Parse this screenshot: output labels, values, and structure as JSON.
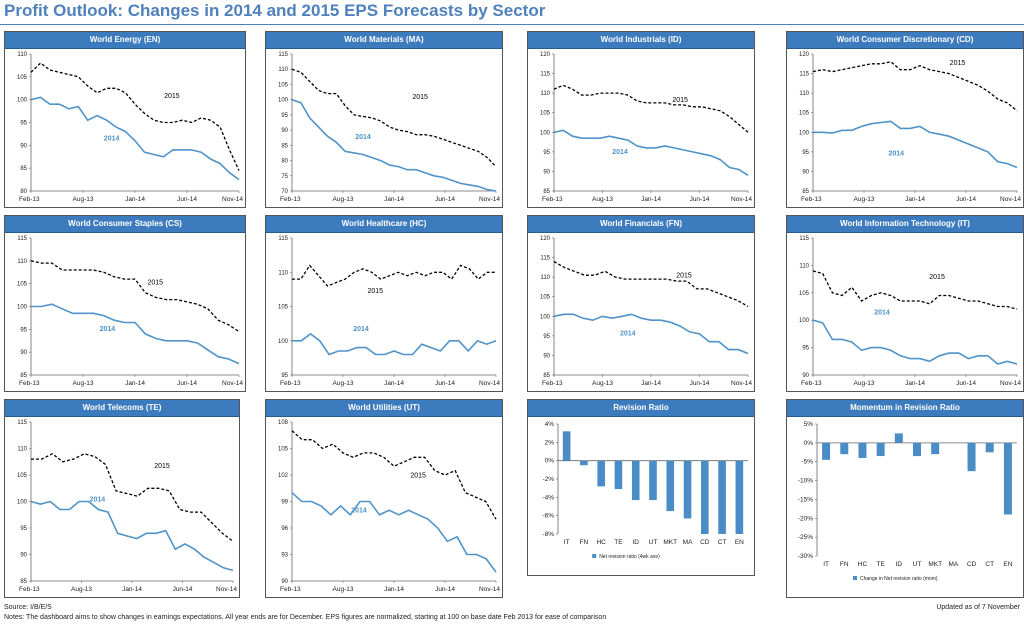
{
  "page": {
    "title": "Profit Outlook: Changes in 2014 and 2015 EPS Forecasts by Sector",
    "source": "Source: I/B/E/S",
    "notes": "Notes:  The dashboard aims to show changes in earnings expectations. All year ends are for December. EPS  figures are normalized, starting at 100 on base date Feb 2013 for ease of comparison",
    "updated": "Updated as of 7 November"
  },
  "colors": {
    "header": "#3d7bbf",
    "series_2014": "#4f93c8",
    "series_2015": "#000000",
    "bars": "#4a8cc6",
    "title": "#4f81bd"
  },
  "chart_data": [
    {
      "type": "line",
      "title": "World Energy (EN)",
      "xticks": [
        "Feb-13",
        "Aug-13",
        "Jan-14",
        "Jun-14",
        "Nov-14"
      ],
      "ylim": [
        80,
        110
      ],
      "yticks": [
        80,
        85,
        90,
        95,
        100,
        105,
        110
      ],
      "labels": {
        "y2015": "2015",
        "y2014": "2014"
      },
      "series": [
        {
          "name": "2015",
          "values": [
            106,
            108,
            106.5,
            106,
            105.5,
            105,
            103,
            101.5,
            102.5,
            102.5,
            101.5,
            99,
            97,
            95.5,
            95,
            95,
            95.5,
            95,
            96,
            95.5,
            94,
            89,
            84.5
          ]
        },
        {
          "name": "2014",
          "values": [
            100,
            100.5,
            99,
            99,
            98,
            98.5,
            95.5,
            96.5,
            95.5,
            94,
            93,
            91,
            88.5,
            88,
            87.5,
            89,
            89,
            89,
            88.5,
            87,
            86,
            84,
            82.5
          ]
        }
      ]
    },
    {
      "type": "line",
      "title": "World Materials (MA)",
      "xticks": [
        "Feb-13",
        "Aug-13",
        "Jan-14",
        "Jun-14",
        "Nov-14"
      ],
      "ylim": [
        70,
        115
      ],
      "yticks": [
        70,
        75,
        80,
        85,
        90,
        95,
        100,
        105,
        110,
        115
      ],
      "labels": {
        "y2015": "2015",
        "y2014": "2014"
      },
      "series": [
        {
          "name": "2015",
          "values": [
            110,
            109,
            106,
            103,
            102,
            102,
            98,
            95,
            94.5,
            94,
            93,
            91,
            90,
            89.5,
            88.5,
            88.5,
            88,
            87,
            86,
            85,
            84,
            83,
            81,
            78
          ]
        },
        {
          "name": "2014",
          "values": [
            100,
            99,
            94,
            91,
            88,
            86,
            83,
            82.5,
            82,
            81,
            80,
            78.5,
            78,
            77,
            77,
            76,
            75,
            74.5,
            73.5,
            72.5,
            72,
            71.5,
            70.5,
            70
          ]
        }
      ]
    },
    {
      "type": "line",
      "title": "World Industrials (ID)",
      "xticks": [
        "Feb-13",
        "Aug-13",
        "Jan-14",
        "Jun-14",
        "Nov-14"
      ],
      "ylim": [
        85,
        120
      ],
      "yticks": [
        85,
        90,
        95,
        100,
        105,
        110,
        115,
        120
      ],
      "labels": {
        "y2015": "2015",
        "y2014": "2014"
      },
      "series": [
        {
          "name": "2015",
          "values": [
            111,
            112,
            111,
            109.5,
            109.5,
            110,
            110,
            110,
            109.5,
            108,
            107.5,
            107.5,
            107.5,
            107,
            107,
            106.5,
            106.5,
            106,
            105.5,
            104,
            102,
            100
          ]
        },
        {
          "name": "2014",
          "values": [
            100,
            100.5,
            99,
            98.5,
            98.5,
            98.5,
            99,
            98.5,
            98,
            96.5,
            96,
            96,
            96.5,
            96,
            95.5,
            95,
            94.5,
            94,
            93,
            91,
            90.5,
            89
          ]
        }
      ]
    },
    {
      "type": "line",
      "title": "World Consumer Discretionary (CD)",
      "xticks": [
        "Feb-13",
        "Aug-13",
        "Jan-14",
        "Jun-14",
        "Nov-14"
      ],
      "ylim": [
        85,
        120
      ],
      "yticks": [
        85,
        90,
        95,
        100,
        105,
        110,
        115,
        120
      ],
      "labels": {
        "y2015": "2015",
        "y2014": "2014"
      },
      "series": [
        {
          "name": "2015",
          "values": [
            115.5,
            116,
            115.5,
            116,
            116.5,
            117,
            117.5,
            117.5,
            118,
            116,
            116,
            117,
            116,
            115.5,
            115,
            114,
            113,
            112,
            110.5,
            108.5,
            107.5,
            105.5
          ]
        },
        {
          "name": "2014",
          "values": [
            100,
            100,
            99.8,
            100.5,
            100.5,
            101.5,
            102.2,
            102.5,
            102.8,
            101,
            101,
            101.5,
            100,
            99.5,
            99,
            98,
            97,
            96,
            95,
            92.5,
            92,
            91
          ]
        }
      ]
    },
    {
      "type": "line",
      "title": "World Consumer Staples (CS)",
      "xticks": [
        "Feb-13",
        "Aug-13",
        "Jan-14",
        "Jun-14",
        "Nov-14"
      ],
      "ylim": [
        85,
        115
      ],
      "yticks": [
        85,
        90,
        95,
        100,
        105,
        110,
        115
      ],
      "labels": {
        "y2015": "2015",
        "y2014": "2014"
      },
      "series": [
        {
          "name": "2015",
          "values": [
            110,
            109.5,
            109.5,
            108,
            108,
            108,
            108,
            107.5,
            106.5,
            106,
            106,
            103,
            102,
            101.5,
            101.5,
            101,
            100.5,
            99.5,
            97,
            96,
            94.5
          ]
        },
        {
          "name": "2014",
          "values": [
            100,
            100,
            100.5,
            99.5,
            98.5,
            98.5,
            98.5,
            98,
            97,
            96.5,
            96.5,
            94,
            93,
            92.5,
            92.5,
            92.5,
            92,
            90.5,
            89,
            88.5,
            87.5
          ]
        }
      ]
    },
    {
      "type": "line",
      "title": "World Healthcare (HC)",
      "xticks": [
        "Feb-13",
        "Aug-13",
        "Jan-14",
        "Jun-14",
        "Nov-14"
      ],
      "ylim": [
        95,
        115
      ],
      "yticks": [
        95,
        100,
        105,
        110,
        115
      ],
      "labels": {
        "y2015": "2015",
        "y2014": "2014"
      },
      "series": [
        {
          "name": "2015",
          "values": [
            109,
            109,
            111,
            109.5,
            108,
            108.5,
            109,
            110,
            110.5,
            110,
            109,
            109.5,
            110,
            109.5,
            110,
            109.5,
            110,
            110,
            109,
            111,
            110.5,
            109,
            110,
            110
          ]
        },
        {
          "name": "2014",
          "values": [
            100,
            100,
            101,
            100,
            98,
            98.5,
            98.5,
            99,
            99,
            98,
            98,
            98.5,
            98,
            98,
            99.5,
            99,
            98.5,
            100,
            100,
            98.5,
            100,
            99.5,
            100
          ]
        }
      ]
    },
    {
      "type": "line",
      "title": "World Financials (FN)",
      "xticks": [
        "Feb-13",
        "Aug-13",
        "Jan-14",
        "Jun-14",
        "Nov-14"
      ],
      "ylim": [
        85,
        120
      ],
      "yticks": [
        85,
        90,
        95,
        100,
        105,
        110,
        115,
        120
      ],
      "labels": {
        "y2015": "2015",
        "y2014": "2014"
      },
      "series": [
        {
          "name": "2015",
          "values": [
            114,
            112.5,
            111.5,
            110.5,
            110.5,
            111.5,
            110,
            109.5,
            109.5,
            109.5,
            109.5,
            109.5,
            109,
            109,
            107,
            107,
            106,
            105,
            104,
            102.5
          ]
        },
        {
          "name": "2014",
          "values": [
            100,
            100.5,
            100.5,
            99.5,
            99,
            100,
            99.5,
            100,
            100.5,
            99.5,
            99,
            99,
            98.5,
            97.5,
            96,
            95.5,
            93.5,
            93.5,
            91.5,
            91.5,
            90.5
          ]
        }
      ]
    },
    {
      "type": "line",
      "title": "World Information Technology (IT)",
      "xticks": [
        "Feb-13",
        "Aug-13",
        "Jan-14",
        "Jun-14",
        "Nov-14"
      ],
      "ylim": [
        90,
        115
      ],
      "yticks": [
        90,
        95,
        100,
        105,
        110,
        115
      ],
      "labels": {
        "y2015": "2015",
        "y2014": "2014"
      },
      "series": [
        {
          "name": "2015",
          "values": [
            109,
            108.5,
            105,
            104.5,
            106,
            103.5,
            104.5,
            105,
            104.5,
            103.5,
            103.5,
            103.5,
            103,
            104.5,
            104.5,
            104,
            103.5,
            103.5,
            103,
            102.5,
            102.5,
            102
          ]
        },
        {
          "name": "2014",
          "values": [
            100,
            99.5,
            96.5,
            96.5,
            96,
            94.5,
            95,
            95,
            94.5,
            93.5,
            93,
            93,
            92.5,
            93.5,
            94,
            94,
            93,
            93.5,
            93.5,
            92,
            92.5,
            92
          ]
        }
      ]
    },
    {
      "type": "line",
      "title": "World Telecoms (TE)",
      "xticks": [
        "Feb-13",
        "Aug-13",
        "Jan-14",
        "Jun-14",
        "Nov-14"
      ],
      "ylim": [
        85,
        115
      ],
      "yticks": [
        85,
        90,
        95,
        100,
        105,
        110,
        115
      ],
      "labels": {
        "y2015": "2015",
        "y2014": "2014"
      },
      "series": [
        {
          "name": "2015",
          "values": [
            108,
            108,
            109,
            107.5,
            108,
            109,
            108.5,
            107,
            102,
            101.5,
            101,
            102.5,
            102.5,
            102,
            98.5,
            98,
            98,
            96,
            94,
            92.5
          ]
        },
        {
          "name": "2014",
          "values": [
            100,
            99.5,
            100,
            98.5,
            98.5,
            100,
            100,
            98.5,
            98,
            94,
            93.5,
            93,
            94,
            94,
            94.5,
            91,
            92,
            91,
            89.5,
            88.5,
            87.5,
            87
          ]
        }
      ]
    },
    {
      "type": "line",
      "title": "World Utilities (UT)",
      "xticks": [
        "Feb-13",
        "Aug-13",
        "Jan-14",
        "Jun-14",
        "Nov-14"
      ],
      "ylim": [
        90,
        108
      ],
      "yticks": [
        90,
        93,
        96,
        99,
        102,
        105,
        108
      ],
      "labels": {
        "y2015": "2015",
        "y2014": "2014"
      },
      "series": [
        {
          "name": "2015",
          "values": [
            107,
            106,
            106,
            105,
            105.5,
            104.5,
            104,
            104.5,
            104.5,
            104,
            103,
            103.5,
            104,
            104,
            102.5,
            102,
            102.5,
            100,
            99.5,
            99,
            97
          ]
        },
        {
          "name": "2014",
          "values": [
            100,
            99,
            99,
            98.5,
            97.5,
            98.5,
            97.5,
            99,
            99,
            97.5,
            98,
            97.5,
            98,
            97.5,
            97,
            96,
            94.5,
            95,
            93,
            93,
            92.5,
            91
          ]
        }
      ]
    },
    {
      "type": "bar",
      "title": "Revision Ratio",
      "categories": [
        "IT",
        "FN",
        "HC",
        "TE",
        "ID",
        "UT",
        "MKT",
        "MA",
        "CD",
        "CT",
        "EN"
      ],
      "values": [
        3.2,
        -0.5,
        -2.8,
        -3.1,
        -4.3,
        -4.3,
        -5.5,
        -6.3,
        -8.0,
        -8.0,
        -8.0
      ],
      "ylim": [
        -8,
        4
      ],
      "yticks": [
        "4%",
        "2%",
        "0%",
        "-2%",
        "-4%",
        "-6%",
        "-8%"
      ],
      "legend": "Net revision ratio (4wk ave)"
    },
    {
      "type": "bar",
      "title": "Momentum in Revision Ratio",
      "categories": [
        "IT",
        "FN",
        "HC",
        "TE",
        "ID",
        "UT",
        "MKT",
        "MA",
        "CD",
        "CT",
        "EN"
      ],
      "values": [
        -4.5,
        -3.0,
        -4.0,
        -3.5,
        2.5,
        -3.5,
        -3.0,
        0,
        -7.5,
        -2.5,
        -19.0
      ],
      "ylim": [
        -30,
        5
      ],
      "yticks": [
        "5%",
        "0%",
        "-5%",
        "-10%",
        "-15%",
        "-20%",
        "-25%",
        "-30%"
      ],
      "legend": "Change in Net revision ratio (mom)"
    }
  ]
}
